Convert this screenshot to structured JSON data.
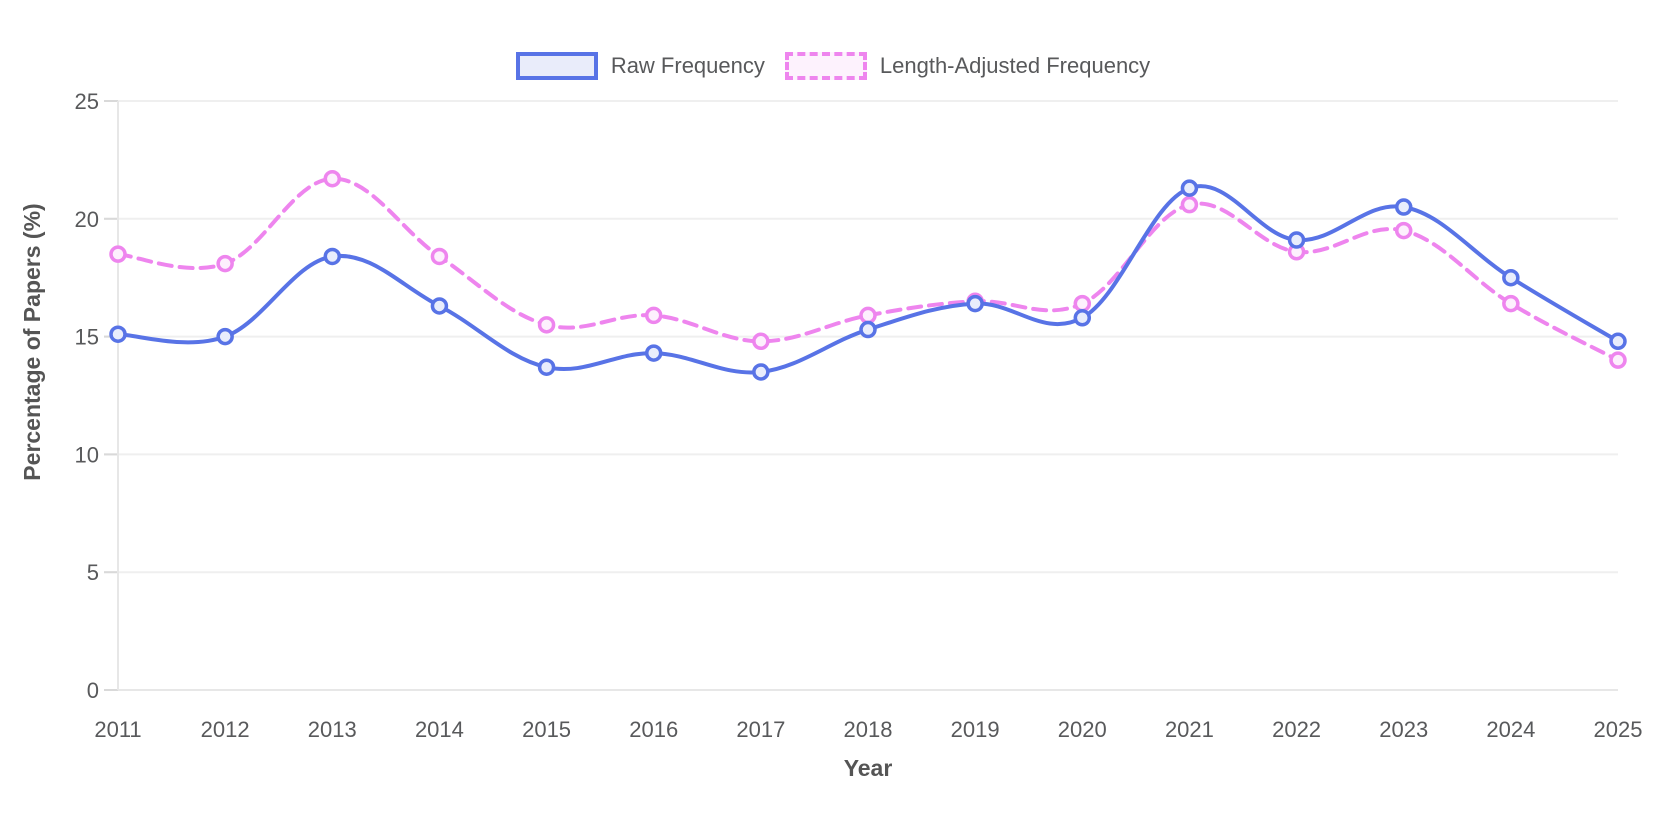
{
  "legend": {
    "items": [
      {
        "label": "Raw Frequency",
        "color": "#5873e6",
        "fill": "#e9ecfa",
        "dashed": false
      },
      {
        "label": "Length-Adjusted Frequency",
        "color": "#ee85ee",
        "fill": "#fdf2fd",
        "dashed": true
      }
    ]
  },
  "chart_data": {
    "type": "line",
    "x": [
      "2011",
      "2012",
      "2013",
      "2014",
      "2015",
      "2016",
      "2017",
      "2018",
      "2019",
      "2020",
      "2021",
      "2022",
      "2023",
      "2024",
      "2025"
    ],
    "series": [
      {
        "name": "Raw Frequency",
        "style": "solid",
        "color": "#5873e6",
        "marker_fill": "#e9edfc",
        "values": [
          15.1,
          15.0,
          18.4,
          16.3,
          13.7,
          14.3,
          13.5,
          15.3,
          16.4,
          15.8,
          21.3,
          19.1,
          20.5,
          17.5,
          14.8
        ]
      },
      {
        "name": "Length-Adjusted Frequency",
        "style": "dashed",
        "color": "#ee85ee",
        "marker_fill": "#fdf0fd",
        "values": [
          18.5,
          18.1,
          21.7,
          18.4,
          15.5,
          15.9,
          14.8,
          15.9,
          16.5,
          16.4,
          20.6,
          18.6,
          19.5,
          16.4,
          14.0
        ]
      }
    ],
    "title": "",
    "xlabel": "Year",
    "ylabel": "Percentage of Papers (%)",
    "ylim": [
      0,
      25
    ],
    "yticks": [
      0,
      5,
      10,
      15,
      20,
      25
    ],
    "grid": true,
    "legend_position": "top",
    "colors": {
      "gridline": "#efefef",
      "axis_line": "#e7e7e7",
      "tick_mark": "#d9d9d9",
      "tick_text": "#58595b"
    }
  }
}
